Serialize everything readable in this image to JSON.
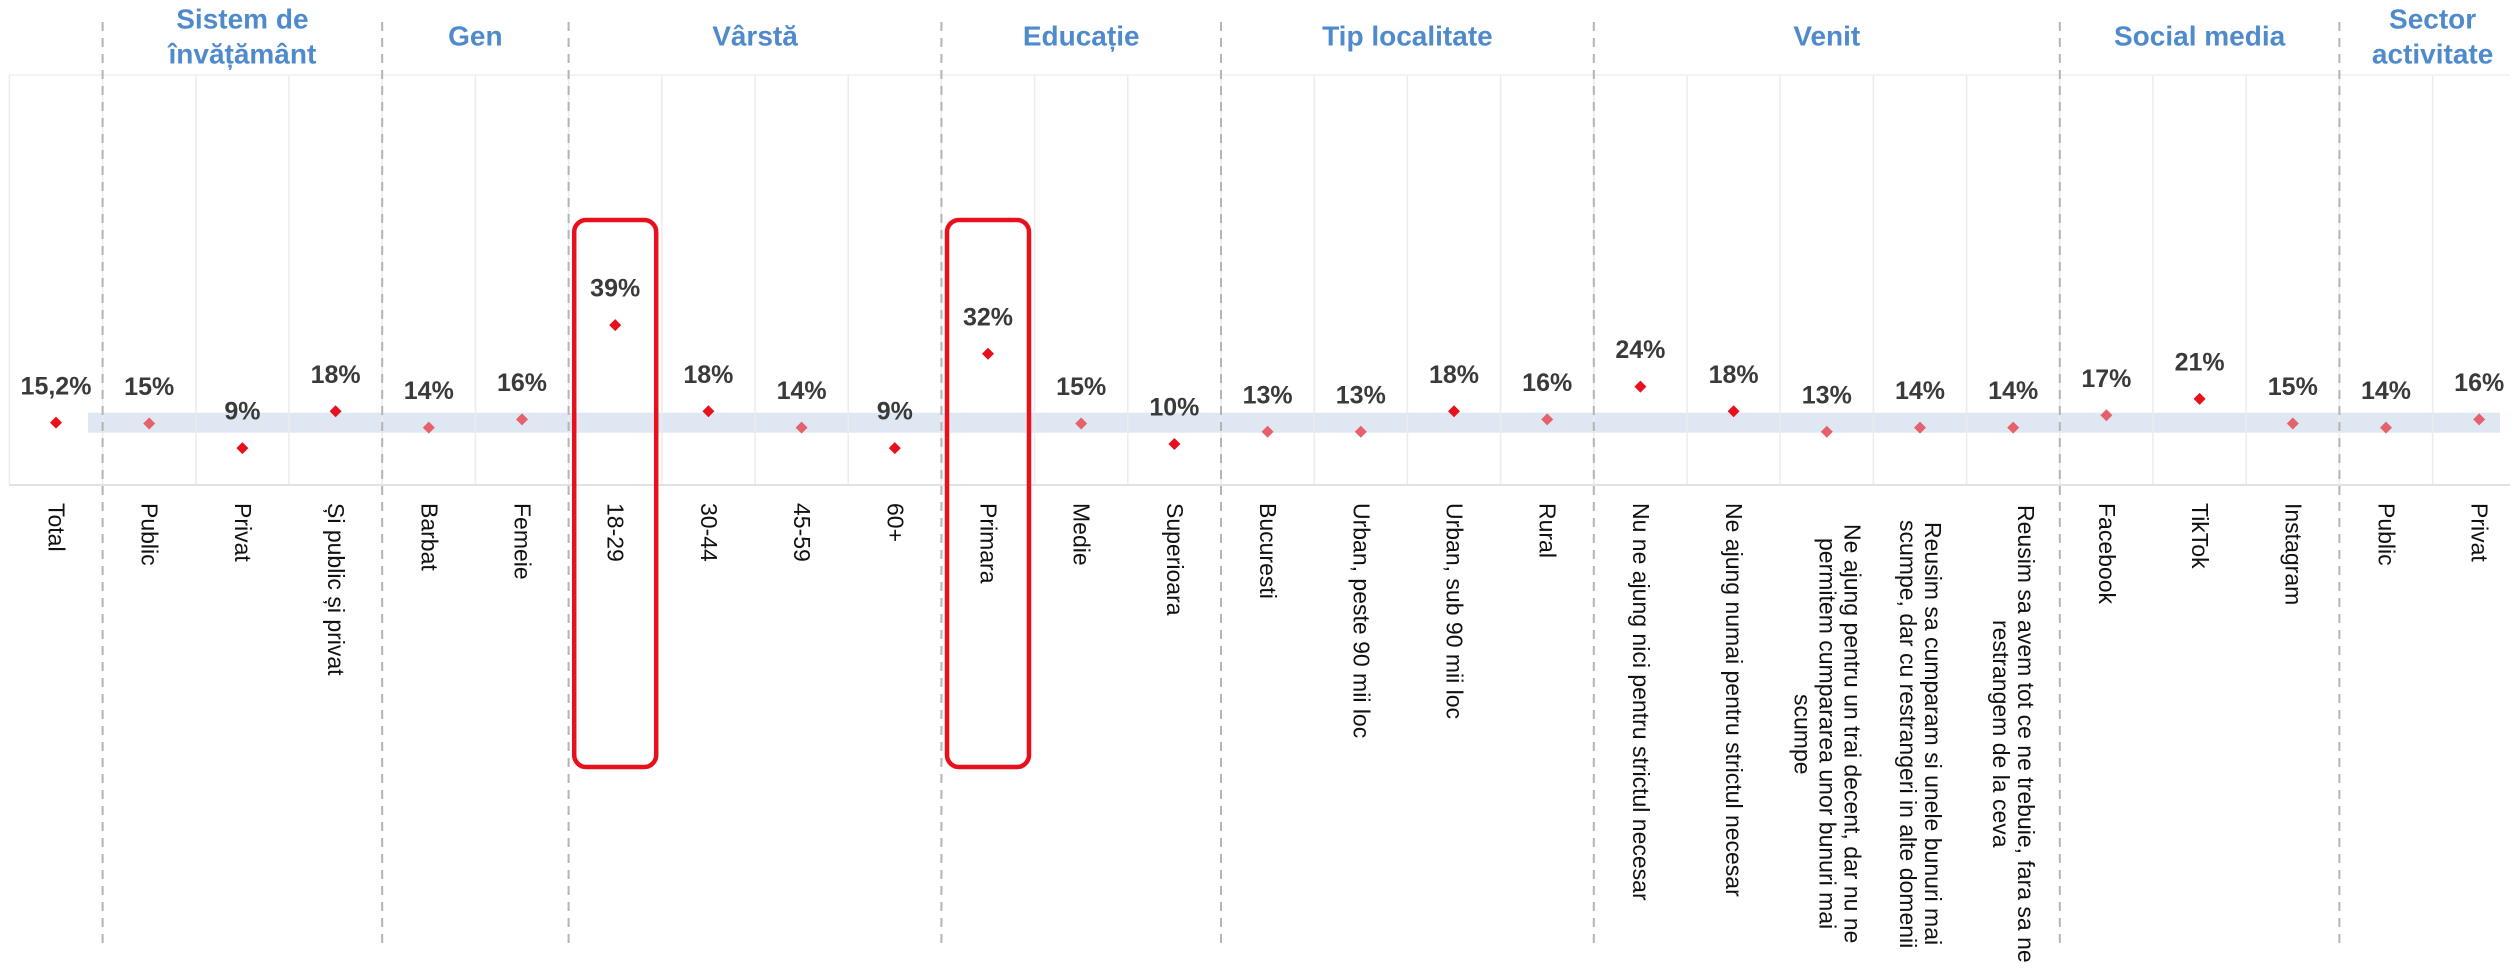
{
  "chart_data": {
    "type": "dot",
    "categories": [
      "Total",
      "Public",
      "Privat",
      "Și public și privat",
      "Barbat",
      "Femeie",
      "18-29",
      "30-44",
      "45-59",
      "60+",
      "Primara",
      "Medie",
      "Superioara",
      "Bucuresti",
      "Urban, peste 90 mii loc",
      "Urban, sub 90 mii loc",
      "Rural",
      "Nu ne ajung nici pentru strictul necesar",
      "Ne ajung numai pentru strictul necesar",
      "Ne ajung pentru un trai decent, dar nu ne permitem cumpararea unor bunuri mai scumpe",
      "Reusim sa cumparam si unele bunuri mai scumpe, dar cu restrangeri in alte domenii",
      "Reusim sa avem tot ce ne trebuie, fara sa ne restrangem de la ceva",
      "Facebook",
      "TikTok",
      "Instagram",
      "Public",
      "Privat"
    ],
    "values": [
      15.2,
      15,
      9,
      18,
      14,
      16,
      39,
      18,
      14,
      9,
      32,
      15,
      10,
      13,
      13,
      18,
      16,
      24,
      18,
      13,
      14,
      14,
      17,
      21,
      15,
      14,
      16
    ],
    "value_labels": [
      "15,2%",
      "15%",
      "9%",
      "18%",
      "14%",
      "16%",
      "39%",
      "18%",
      "14%",
      "9%",
      "32%",
      "15%",
      "10%",
      "13%",
      "13%",
      "18%",
      "16%",
      "24%",
      "18%",
      "13%",
      "14%",
      "14%",
      "17%",
      "21%",
      "15%",
      "14%",
      "16%"
    ],
    "point_colors": [
      "#e8101c",
      "#e5616b",
      "#e8101c",
      "#e8101c",
      "#e5616b",
      "#e5616b",
      "#e8101c",
      "#e8101c",
      "#e5616b",
      "#e8101c",
      "#e8101c",
      "#e5616b",
      "#e8101c",
      "#e5616b",
      "#e5616b",
      "#e8101c",
      "#e5616b",
      "#e8101c",
      "#e8101c",
      "#e5616b",
      "#e5616b",
      "#e5616b",
      "#e5616b",
      "#e8101c",
      "#e5616b",
      "#e5616b",
      "#e5616b"
    ],
    "groups": [
      {
        "name": [
          "Sistem de",
          "învățământ"
        ],
        "span": [
          1,
          3
        ]
      },
      {
        "name": [
          "Gen"
        ],
        "span": [
          4,
          5
        ]
      },
      {
        "name": [
          "Vârstă"
        ],
        "span": [
          6,
          9
        ]
      },
      {
        "name": [
          "Educație"
        ],
        "span": [
          10,
          12
        ]
      },
      {
        "name": [
          "Tip localitate"
        ],
        "span": [
          13,
          16
        ]
      },
      {
        "name": [
          "Venit"
        ],
        "span": [
          17,
          21
        ]
      },
      {
        "name": [
          "Social media"
        ],
        "span": [
          22,
          24
        ]
      },
      {
        "name": [
          "Sector",
          "activitate"
        ],
        "span": [
          25,
          26
        ]
      }
    ],
    "highlight": [
      6,
      10
    ],
    "ylim": [
      0,
      100
    ],
    "reference_band": true
  }
}
